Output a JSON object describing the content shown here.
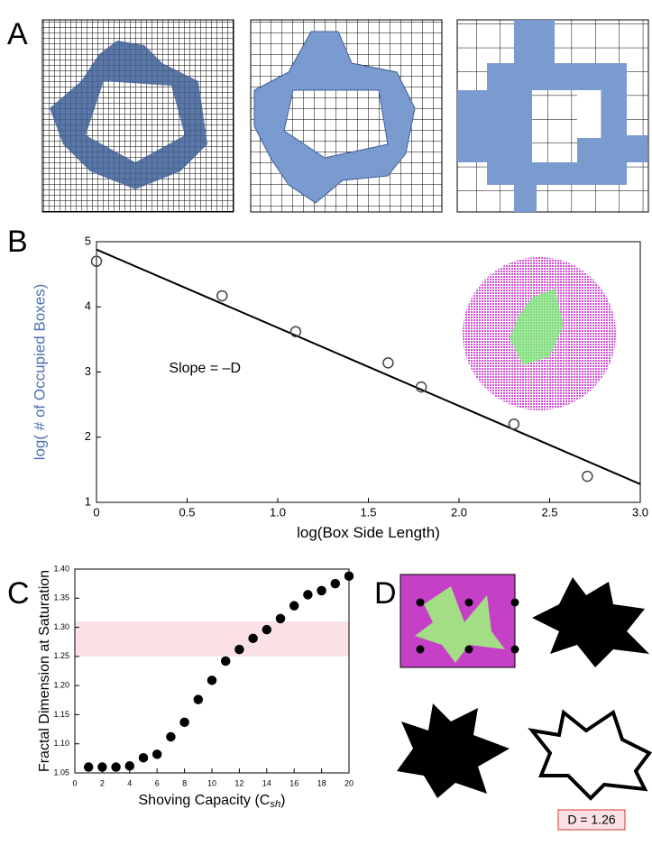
{
  "panels": {
    "a": "A",
    "d": "D",
    "d_result": "D = 1.26"
  },
  "chart_data": [
    {
      "type": "scatter",
      "panel": "B",
      "xlabel": "log(Box Side Length)",
      "ylabel": "log( # of Occupied Boxes)",
      "ylabel_color": "#4a6fb0",
      "annotation": "Slope = –D",
      "x": [
        0,
        0.693,
        1.099,
        1.609,
        1.792,
        2.303,
        2.708
      ],
      "values": [
        4.7,
        4.17,
        3.62,
        3.14,
        2.77,
        2.2,
        1.4
      ],
      "marker": "open",
      "color": "#444444",
      "fit": {
        "x": [
          0,
          3
        ],
        "y": [
          4.88,
          1.28
        ],
        "color": "#000000"
      },
      "xlim": [
        0,
        3
      ],
      "ylim": [
        1,
        5
      ],
      "xticks": [
        0,
        0.5,
        {
          "value": 1,
          "label": "1.0"
        },
        1.5,
        {
          "value": 2,
          "label": "2.0"
        },
        2.5,
        {
          "value": 3,
          "label": "3.0"
        }
      ],
      "yticks": [
        1,
        2,
        3,
        4,
        5
      ]
    },
    {
      "type": "scatter",
      "panel": "C",
      "xlabel": "Shoving Capacity (C",
      "xlabel_sub": "sh",
      "xlabel_end": ")",
      "ylabel": "Fractal Dimension at Saturation",
      "ylabel_color": "#000000",
      "x": [
        1,
        2,
        3,
        4,
        5,
        6,
        7,
        8,
        9,
        10,
        11,
        12,
        13,
        14,
        15,
        16,
        17,
        18,
        19,
        20
      ],
      "values": [
        1.06,
        1.06,
        1.06,
        1.062,
        1.076,
        1.082,
        1.112,
        1.137,
        1.176,
        1.209,
        1.242,
        1.262,
        1.281,
        1.296,
        1.315,
        1.337,
        1.356,
        1.363,
        1.375,
        1.388
      ],
      "marker": "filled",
      "color": "#000000",
      "band": [
        1.25,
        1.31
      ],
      "band_color": "#fbe1e6",
      "xlim": [
        0,
        20
      ],
      "ylim": [
        1.05,
        1.4
      ],
      "xticks": [
        0,
        2,
        4,
        6,
        8,
        10,
        12,
        14,
        16,
        18,
        20
      ],
      "yticks": [
        1.05,
        {
          "value": 1.1,
          "label": "1.10"
        },
        1.15,
        {
          "value": 1.2,
          "label": "1.20"
        },
        1.25,
        {
          "value": 1.3,
          "label": "1.30"
        },
        1.35,
        {
          "value": 1.4,
          "label": "1.40"
        }
      ]
    }
  ]
}
